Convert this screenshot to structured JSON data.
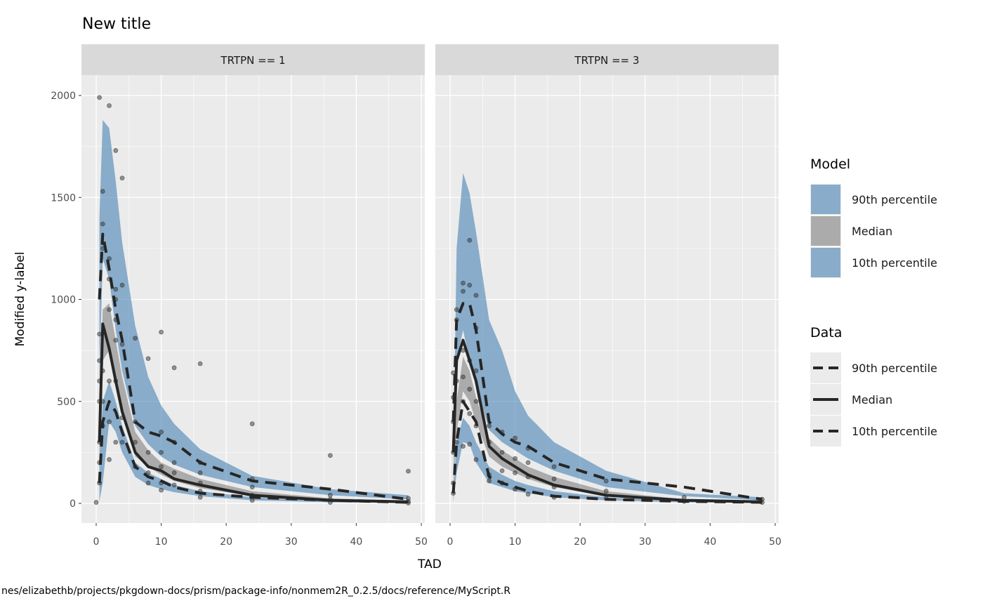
{
  "chart_data": {
    "type": "line",
    "title": "New title",
    "xlabel": "TAD",
    "ylabel": "Modified y-label",
    "xlim": [
      -2.4,
      50.6
    ],
    "ylim": [
      -100,
      2100
    ],
    "x_ticks": [
      0,
      10,
      20,
      30,
      40,
      50
    ],
    "y_ticks": [
      0,
      500,
      1000,
      1500,
      2000
    ],
    "grid": true,
    "legend_position": "right",
    "colors": {
      "band_blue": "#4682B4",
      "band_gray": "#808080",
      "line": "#262626",
      "point": "#333333",
      "panel_bg": "#EBEBEB",
      "strip_bg": "#D9D9D9"
    },
    "legends": [
      {
        "title": "Model",
        "entries": [
          {
            "label": "90th percentile",
            "key": "blue-fill"
          },
          {
            "label": "Median",
            "key": "gray-fill"
          },
          {
            "label": "10th percentile",
            "key": "blue-fill"
          }
        ]
      },
      {
        "title": "Data",
        "entries": [
          {
            "label": "90th percentile",
            "key": "dashed"
          },
          {
            "label": "Median",
            "key": "solid"
          },
          {
            "label": "10th percentile",
            "key": "dashed"
          }
        ]
      }
    ],
    "time": [
      0.5,
      1,
      2,
      3,
      4,
      6,
      8,
      10,
      12,
      16,
      24,
      36,
      48
    ],
    "panels": [
      {
        "strip": "TRTPN == 1",
        "model": {
          "p90_hi": [
            1400,
            1880,
            1840,
            1580,
            1280,
            870,
            620,
            480,
            390,
            265,
            135,
            70,
            40
          ],
          "p90_lo": [
            600,
            1200,
            1100,
            850,
            650,
            380,
            290,
            230,
            190,
            140,
            80,
            40,
            20
          ],
          "p50_hi": [
            400,
            950,
            980,
            800,
            620,
            350,
            260,
            200,
            170,
            120,
            60,
            25,
            12
          ],
          "p50_lo": [
            150,
            700,
            750,
            600,
            450,
            230,
            180,
            140,
            110,
            75,
            35,
            12,
            5
          ],
          "p10_hi": [
            200,
            500,
            600,
            500,
            380,
            200,
            150,
            120,
            90,
            60,
            30,
            10,
            5
          ],
          "p10_lo": [
            10,
            100,
            400,
            350,
            250,
            130,
            90,
            70,
            55,
            35,
            15,
            5,
            2
          ]
        },
        "data": {
          "p90": [
            1000,
            1320,
            1150,
            950,
            800,
            400,
            350,
            330,
            300,
            200,
            110,
            70,
            20
          ],
          "p50": [
            300,
            880,
            760,
            600,
            450,
            250,
            180,
            160,
            120,
            90,
            40,
            15,
            8
          ],
          "p10": [
            100,
            400,
            500,
            450,
            350,
            180,
            130,
            110,
            80,
            50,
            30,
            15,
            5
          ]
        },
        "points": [
          [
            0.5,
            1990
          ],
          [
            2,
            1950
          ],
          [
            3,
            1730
          ],
          [
            4,
            1595
          ],
          [
            1,
            1530
          ],
          [
            1,
            1370
          ],
          [
            1,
            1250
          ],
          [
            2,
            1200
          ],
          [
            2,
            1100
          ],
          [
            3,
            1050
          ],
          [
            4,
            1070
          ],
          [
            3,
            1000
          ],
          [
            2,
            950
          ],
          [
            3,
            900
          ],
          [
            3,
            800
          ],
          [
            4,
            780
          ],
          [
            6,
            810
          ],
          [
            8,
            710
          ],
          [
            10,
            840
          ],
          [
            12,
            665
          ],
          [
            16,
            685
          ],
          [
            24,
            390
          ],
          [
            36,
            235
          ],
          [
            48,
            158
          ],
          [
            0.5,
            830
          ],
          [
            0.5,
            700
          ],
          [
            0.5,
            600
          ],
          [
            0.5,
            500
          ],
          [
            0.5,
            300
          ],
          [
            0.5,
            100
          ],
          [
            0,
            5
          ],
          [
            1,
            650
          ],
          [
            1,
            500
          ],
          [
            2,
            400
          ],
          [
            2,
            215
          ],
          [
            3,
            300
          ],
          [
            4,
            300
          ],
          [
            4,
            420
          ],
          [
            6,
            400
          ],
          [
            6,
            300
          ],
          [
            6,
            180
          ],
          [
            8,
            250
          ],
          [
            8,
            150
          ],
          [
            8,
            100
          ],
          [
            10,
            350
          ],
          [
            10,
            250
          ],
          [
            10,
            180
          ],
          [
            10,
            100
          ],
          [
            10,
            65
          ],
          [
            12,
            300
          ],
          [
            12,
            200
          ],
          [
            12,
            150
          ],
          [
            12,
            90
          ],
          [
            16,
            200
          ],
          [
            16,
            150
          ],
          [
            16,
            100
          ],
          [
            16,
            60
          ],
          [
            16,
            30
          ],
          [
            24,
            120
          ],
          [
            24,
            80
          ],
          [
            24,
            40
          ],
          [
            24,
            15
          ],
          [
            36,
            40
          ],
          [
            36,
            20
          ],
          [
            36,
            5
          ],
          [
            48,
            25
          ],
          [
            48,
            10
          ],
          [
            48,
            2
          ],
          [
            1,
            380
          ],
          [
            2,
            600
          ],
          [
            3,
            600
          ],
          [
            0.5,
            200
          ]
        ]
      },
      {
        "strip": "TRTPN == 3",
        "model": {
          "p90_hi": [
            200,
            1250,
            1620,
            1520,
            1330,
            900,
            750,
            550,
            430,
            300,
            160,
            50,
            30
          ],
          "p90_lo": [
            100,
            700,
            850,
            700,
            580,
            360,
            300,
            260,
            220,
            160,
            80,
            35,
            15
          ],
          "p50_hi": [
            80,
            500,
            720,
            650,
            520,
            320,
            260,
            220,
            180,
            130,
            60,
            20,
            10
          ],
          "p50_lo": [
            40,
            350,
            550,
            500,
            400,
            230,
            180,
            150,
            120,
            80,
            35,
            10,
            5
          ],
          "p10_hi": [
            50,
            300,
            420,
            380,
            300,
            180,
            140,
            110,
            90,
            60,
            30,
            10,
            5
          ],
          "p10_lo": [
            10,
            150,
            300,
            290,
            200,
            100,
            80,
            60,
            50,
            30,
            15,
            5,
            2
          ]
        },
        "data": {
          "p90": [
            400,
            900,
            980,
            980,
            850,
            400,
            340,
            300,
            280,
            200,
            120,
            80,
            20
          ],
          "p50": [
            250,
            700,
            800,
            700,
            600,
            280,
            220,
            180,
            140,
            90,
            40,
            15,
            8
          ],
          "p10": [
            50,
            300,
            500,
            450,
            400,
            130,
            100,
            80,
            60,
            35,
            20,
            10,
            5
          ]
        },
        "points": [
          [
            3,
            1290
          ],
          [
            2,
            1080
          ],
          [
            2,
            1040
          ],
          [
            3,
            1070
          ],
          [
            4,
            1020
          ],
          [
            4,
            860
          ],
          [
            1,
            950
          ],
          [
            1,
            900
          ],
          [
            0.5,
            640
          ],
          [
            0.5,
            520
          ],
          [
            0.5,
            400
          ],
          [
            0.5,
            250
          ],
          [
            0.5,
            100
          ],
          [
            0.5,
            50
          ],
          [
            1,
            600
          ],
          [
            1,
            300
          ],
          [
            2,
            750
          ],
          [
            2,
            620
          ],
          [
            2,
            500
          ],
          [
            2,
            280
          ],
          [
            3,
            700
          ],
          [
            3,
            560
          ],
          [
            3,
            440
          ],
          [
            4,
            650
          ],
          [
            4,
            500
          ],
          [
            4,
            380
          ],
          [
            4,
            215
          ],
          [
            3,
            290
          ],
          [
            6,
            380
          ],
          [
            6,
            300
          ],
          [
            6,
            140
          ],
          [
            6,
            110
          ],
          [
            8,
            350
          ],
          [
            8,
            250
          ],
          [
            8,
            160
          ],
          [
            8,
            100
          ],
          [
            10,
            320
          ],
          [
            10,
            220
          ],
          [
            10,
            150
          ],
          [
            10,
            70
          ],
          [
            12,
            270
          ],
          [
            12,
            200
          ],
          [
            12,
            130
          ],
          [
            12,
            45
          ],
          [
            16,
            180
          ],
          [
            16,
            120
          ],
          [
            16,
            80
          ],
          [
            16,
            30
          ],
          [
            24,
            110
          ],
          [
            24,
            60
          ],
          [
            24,
            25
          ],
          [
            36,
            30
          ],
          [
            36,
            10
          ],
          [
            48,
            20
          ],
          [
            48,
            5
          ]
        ]
      }
    ]
  },
  "footer": {
    "path_text": "nes/elizabethb/projects/pkgdown-docs/prism/package-info/nonmem2R_0.2.5/docs/reference/MyScript.R"
  }
}
